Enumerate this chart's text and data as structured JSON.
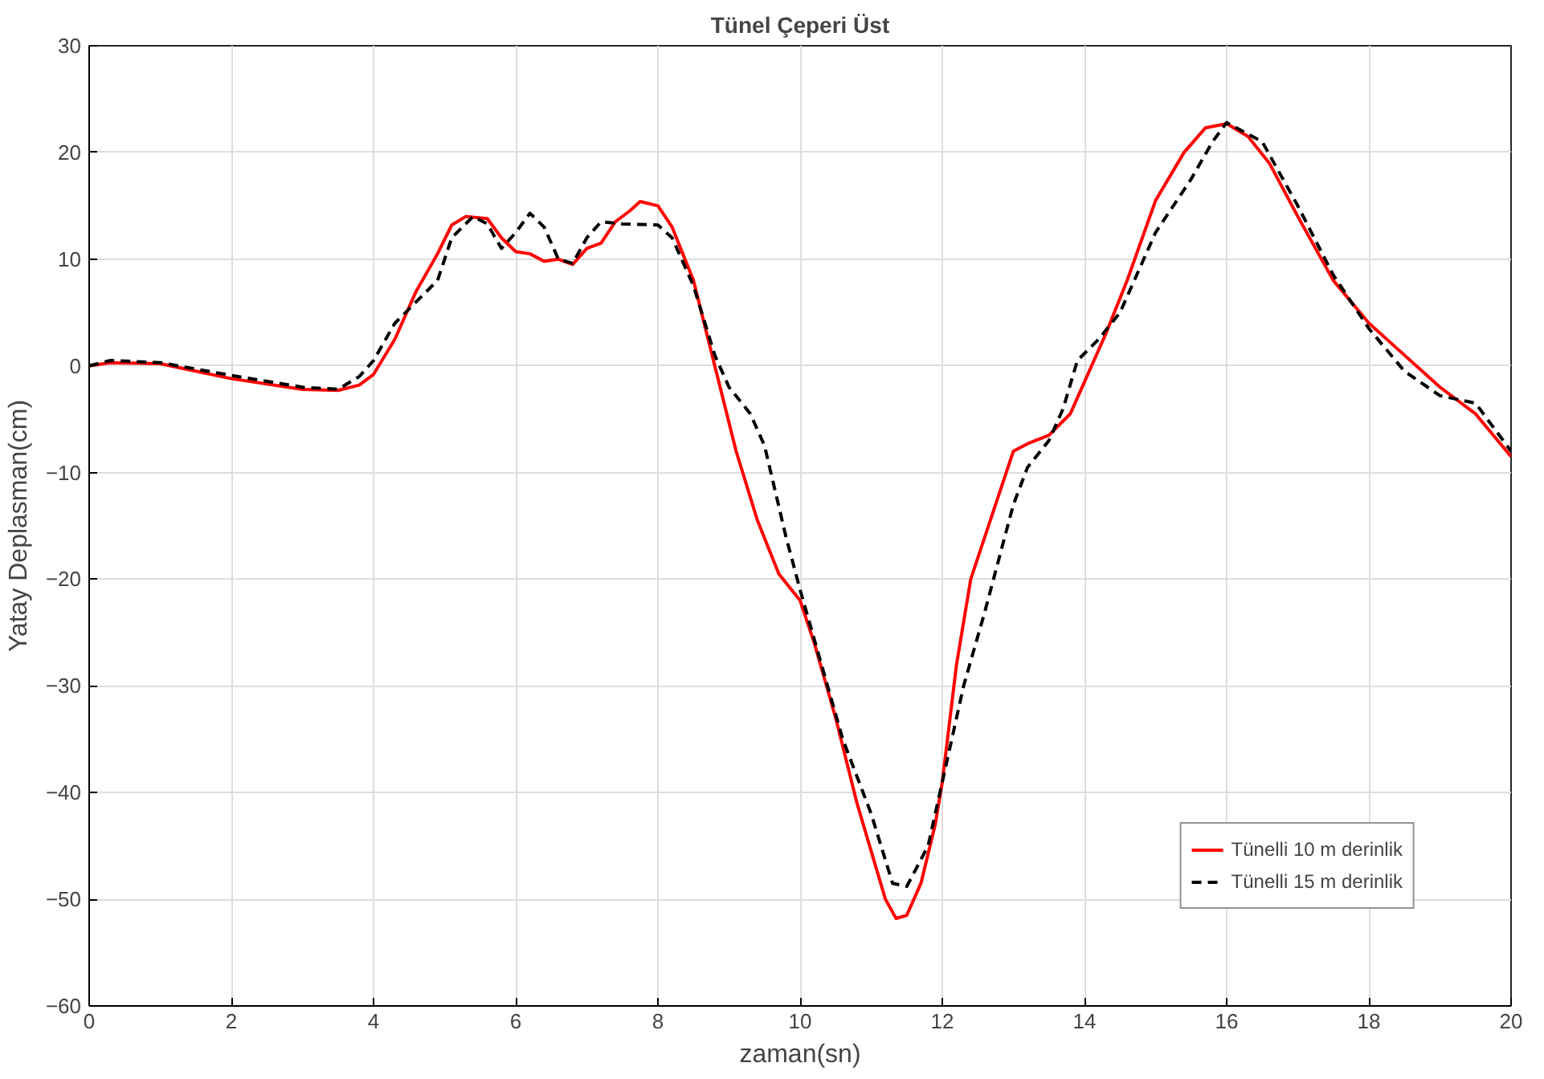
{
  "chart_data": {
    "type": "line",
    "title": "Tünel Çeperi Üst",
    "xlabel": "zaman(sn)",
    "ylabel": "Yatay Deplasman(cm)",
    "xlim": [
      0,
      20
    ],
    "ylim": [
      -60,
      30
    ],
    "xticks": [
      0,
      2,
      4,
      6,
      8,
      10,
      12,
      14,
      16,
      18,
      20
    ],
    "yticks": [
      -60,
      -50,
      -40,
      -30,
      -20,
      -10,
      0,
      10,
      20,
      30
    ],
    "grid": true,
    "legend": "bottom right",
    "series": [
      {
        "name": "Tünelli 10 m derinlik",
        "color": "#ff0000",
        "line_style": "solid",
        "x": [
          0,
          0.3,
          1,
          2,
          3,
          3.5,
          3.8,
          4,
          4.3,
          4.6,
          4.9,
          5.1,
          5.3,
          5.6,
          5.8,
          6,
          6.2,
          6.4,
          6.6,
          6.8,
          7,
          7.2,
          7.4,
          7.6,
          7.75,
          8,
          8.2,
          8.5,
          8.8,
          9.1,
          9.4,
          9.7,
          10,
          10.2,
          10.5,
          10.8,
          11,
          11.2,
          11.35,
          11.5,
          11.7,
          11.9,
          12,
          12.2,
          12.4,
          12.7,
          13,
          13.2,
          13.5,
          13.8,
          14,
          14.3,
          14.6,
          15,
          15.4,
          15.7,
          16,
          16.3,
          16.6,
          17,
          17.5,
          18,
          18.5,
          19,
          19.5,
          20
        ],
        "values": [
          0,
          0.3,
          0.2,
          -1.2,
          -2.2,
          -2.3,
          -1.8,
          -0.8,
          2.5,
          7,
          10.5,
          13.2,
          14,
          13.8,
          12,
          10.7,
          10.5,
          9.8,
          10,
          9.5,
          11,
          11.5,
          13.5,
          14.5,
          15.4,
          15,
          13,
          8,
          0,
          -8,
          -14.5,
          -19.5,
          -22,
          -26,
          -33,
          -41,
          -45.5,
          -50,
          -51.8,
          -51.5,
          -48.5,
          -43,
          -39,
          -28,
          -20,
          -14,
          -8,
          -7.3,
          -6.5,
          -4.5,
          -1.5,
          3,
          8,
          15.5,
          20,
          22.3,
          22.7,
          21.5,
          19,
          14,
          8,
          4,
          1,
          -2,
          -4.5,
          -8.5
        ]
      },
      {
        "name": "Tünelli 15 m derinlik",
        "color": "#000000",
        "line_style": "dashed",
        "x": [
          0,
          0.3,
          1,
          2,
          3,
          3.5,
          3.8,
          4,
          4.3,
          4.6,
          4.9,
          5.1,
          5.4,
          5.6,
          5.8,
          6,
          6.2,
          6.4,
          6.6,
          6.8,
          7,
          7.2,
          7.5,
          8,
          8.2,
          8.5,
          8.8,
          9,
          9.3,
          9.5,
          9.8,
          10,
          10.3,
          10.6,
          11,
          11.3,
          11.5,
          11.8,
          12,
          12.3,
          12.6,
          13,
          13.2,
          13.5,
          13.7,
          13.9,
          14.2,
          14.5,
          15,
          15.5,
          15.8,
          16,
          16.5,
          17,
          17.5,
          18,
          18.5,
          19,
          19.5,
          20
        ],
        "values": [
          0,
          0.5,
          0.3,
          -0.9,
          -2,
          -2.2,
          -1,
          0.5,
          4,
          6,
          8,
          12,
          14,
          13.3,
          11,
          12.5,
          14.3,
          13,
          10,
          9.6,
          12,
          13.5,
          13.3,
          13.2,
          12,
          7.5,
          1,
          -2,
          -4.5,
          -7.5,
          -16,
          -21,
          -28,
          -35,
          -42,
          -48.5,
          -48.8,
          -45,
          -39,
          -30,
          -23,
          -13,
          -9.5,
          -7,
          -4,
          0.5,
          2.5,
          5,
          12.5,
          17.5,
          21,
          22.8,
          21,
          15,
          8.5,
          3.5,
          -0.5,
          -2.8,
          -3.5,
          -8
        ]
      }
    ]
  }
}
